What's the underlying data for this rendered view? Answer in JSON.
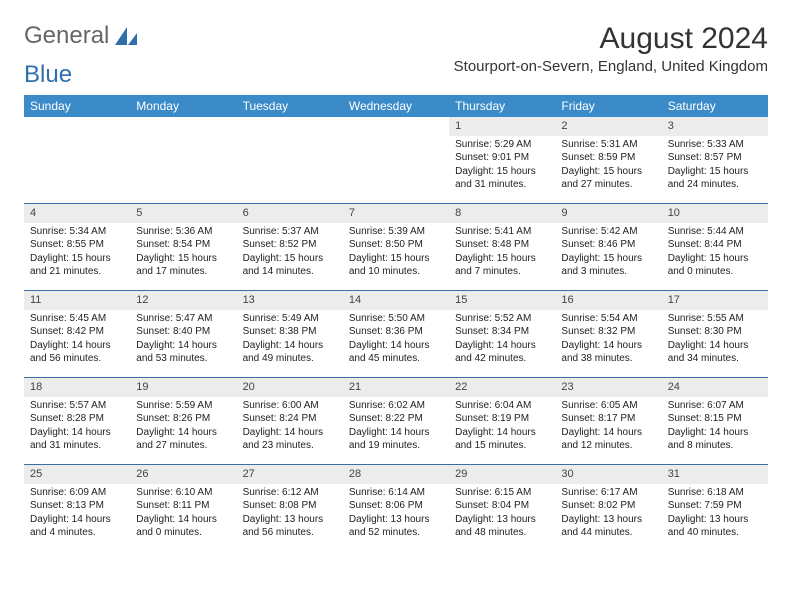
{
  "logo": {
    "text1": "General",
    "text2": "Blue"
  },
  "title": "August 2024",
  "location": "Stourport-on-Severn, England, United Kingdom",
  "colors": {
    "header_bg": "#3b8bc9",
    "header_text": "#ffffff",
    "row_divider": "#3b6ea5",
    "daynum_bg": "#ececec",
    "logo_gray": "#666666",
    "logo_blue": "#2f6fab"
  },
  "typography": {
    "title_fontsize": 30,
    "location_fontsize": 15,
    "weekday_fontsize": 12,
    "daynum_fontsize": 11,
    "body_fontsize": 10
  },
  "weekdays": [
    "Sunday",
    "Monday",
    "Tuesday",
    "Wednesday",
    "Thursday",
    "Friday",
    "Saturday"
  ],
  "weeks": [
    [
      {
        "n": "",
        "sr": "",
        "ss": "",
        "dl": ""
      },
      {
        "n": "",
        "sr": "",
        "ss": "",
        "dl": ""
      },
      {
        "n": "",
        "sr": "",
        "ss": "",
        "dl": ""
      },
      {
        "n": "",
        "sr": "",
        "ss": "",
        "dl": ""
      },
      {
        "n": "1",
        "sr": "Sunrise: 5:29 AM",
        "ss": "Sunset: 9:01 PM",
        "dl": "Daylight: 15 hours and 31 minutes."
      },
      {
        "n": "2",
        "sr": "Sunrise: 5:31 AM",
        "ss": "Sunset: 8:59 PM",
        "dl": "Daylight: 15 hours and 27 minutes."
      },
      {
        "n": "3",
        "sr": "Sunrise: 5:33 AM",
        "ss": "Sunset: 8:57 PM",
        "dl": "Daylight: 15 hours and 24 minutes."
      }
    ],
    [
      {
        "n": "4",
        "sr": "Sunrise: 5:34 AM",
        "ss": "Sunset: 8:55 PM",
        "dl": "Daylight: 15 hours and 21 minutes."
      },
      {
        "n": "5",
        "sr": "Sunrise: 5:36 AM",
        "ss": "Sunset: 8:54 PM",
        "dl": "Daylight: 15 hours and 17 minutes."
      },
      {
        "n": "6",
        "sr": "Sunrise: 5:37 AM",
        "ss": "Sunset: 8:52 PM",
        "dl": "Daylight: 15 hours and 14 minutes."
      },
      {
        "n": "7",
        "sr": "Sunrise: 5:39 AM",
        "ss": "Sunset: 8:50 PM",
        "dl": "Daylight: 15 hours and 10 minutes."
      },
      {
        "n": "8",
        "sr": "Sunrise: 5:41 AM",
        "ss": "Sunset: 8:48 PM",
        "dl": "Daylight: 15 hours and 7 minutes."
      },
      {
        "n": "9",
        "sr": "Sunrise: 5:42 AM",
        "ss": "Sunset: 8:46 PM",
        "dl": "Daylight: 15 hours and 3 minutes."
      },
      {
        "n": "10",
        "sr": "Sunrise: 5:44 AM",
        "ss": "Sunset: 8:44 PM",
        "dl": "Daylight: 15 hours and 0 minutes."
      }
    ],
    [
      {
        "n": "11",
        "sr": "Sunrise: 5:45 AM",
        "ss": "Sunset: 8:42 PM",
        "dl": "Daylight: 14 hours and 56 minutes."
      },
      {
        "n": "12",
        "sr": "Sunrise: 5:47 AM",
        "ss": "Sunset: 8:40 PM",
        "dl": "Daylight: 14 hours and 53 minutes."
      },
      {
        "n": "13",
        "sr": "Sunrise: 5:49 AM",
        "ss": "Sunset: 8:38 PM",
        "dl": "Daylight: 14 hours and 49 minutes."
      },
      {
        "n": "14",
        "sr": "Sunrise: 5:50 AM",
        "ss": "Sunset: 8:36 PM",
        "dl": "Daylight: 14 hours and 45 minutes."
      },
      {
        "n": "15",
        "sr": "Sunrise: 5:52 AM",
        "ss": "Sunset: 8:34 PM",
        "dl": "Daylight: 14 hours and 42 minutes."
      },
      {
        "n": "16",
        "sr": "Sunrise: 5:54 AM",
        "ss": "Sunset: 8:32 PM",
        "dl": "Daylight: 14 hours and 38 minutes."
      },
      {
        "n": "17",
        "sr": "Sunrise: 5:55 AM",
        "ss": "Sunset: 8:30 PM",
        "dl": "Daylight: 14 hours and 34 minutes."
      }
    ],
    [
      {
        "n": "18",
        "sr": "Sunrise: 5:57 AM",
        "ss": "Sunset: 8:28 PM",
        "dl": "Daylight: 14 hours and 31 minutes."
      },
      {
        "n": "19",
        "sr": "Sunrise: 5:59 AM",
        "ss": "Sunset: 8:26 PM",
        "dl": "Daylight: 14 hours and 27 minutes."
      },
      {
        "n": "20",
        "sr": "Sunrise: 6:00 AM",
        "ss": "Sunset: 8:24 PM",
        "dl": "Daylight: 14 hours and 23 minutes."
      },
      {
        "n": "21",
        "sr": "Sunrise: 6:02 AM",
        "ss": "Sunset: 8:22 PM",
        "dl": "Daylight: 14 hours and 19 minutes."
      },
      {
        "n": "22",
        "sr": "Sunrise: 6:04 AM",
        "ss": "Sunset: 8:19 PM",
        "dl": "Daylight: 14 hours and 15 minutes."
      },
      {
        "n": "23",
        "sr": "Sunrise: 6:05 AM",
        "ss": "Sunset: 8:17 PM",
        "dl": "Daylight: 14 hours and 12 minutes."
      },
      {
        "n": "24",
        "sr": "Sunrise: 6:07 AM",
        "ss": "Sunset: 8:15 PM",
        "dl": "Daylight: 14 hours and 8 minutes."
      }
    ],
    [
      {
        "n": "25",
        "sr": "Sunrise: 6:09 AM",
        "ss": "Sunset: 8:13 PM",
        "dl": "Daylight: 14 hours and 4 minutes."
      },
      {
        "n": "26",
        "sr": "Sunrise: 6:10 AM",
        "ss": "Sunset: 8:11 PM",
        "dl": "Daylight: 14 hours and 0 minutes."
      },
      {
        "n": "27",
        "sr": "Sunrise: 6:12 AM",
        "ss": "Sunset: 8:08 PM",
        "dl": "Daylight: 13 hours and 56 minutes."
      },
      {
        "n": "28",
        "sr": "Sunrise: 6:14 AM",
        "ss": "Sunset: 8:06 PM",
        "dl": "Daylight: 13 hours and 52 minutes."
      },
      {
        "n": "29",
        "sr": "Sunrise: 6:15 AM",
        "ss": "Sunset: 8:04 PM",
        "dl": "Daylight: 13 hours and 48 minutes."
      },
      {
        "n": "30",
        "sr": "Sunrise: 6:17 AM",
        "ss": "Sunset: 8:02 PM",
        "dl": "Daylight: 13 hours and 44 minutes."
      },
      {
        "n": "31",
        "sr": "Sunrise: 6:18 AM",
        "ss": "Sunset: 7:59 PM",
        "dl": "Daylight: 13 hours and 40 minutes."
      }
    ]
  ]
}
